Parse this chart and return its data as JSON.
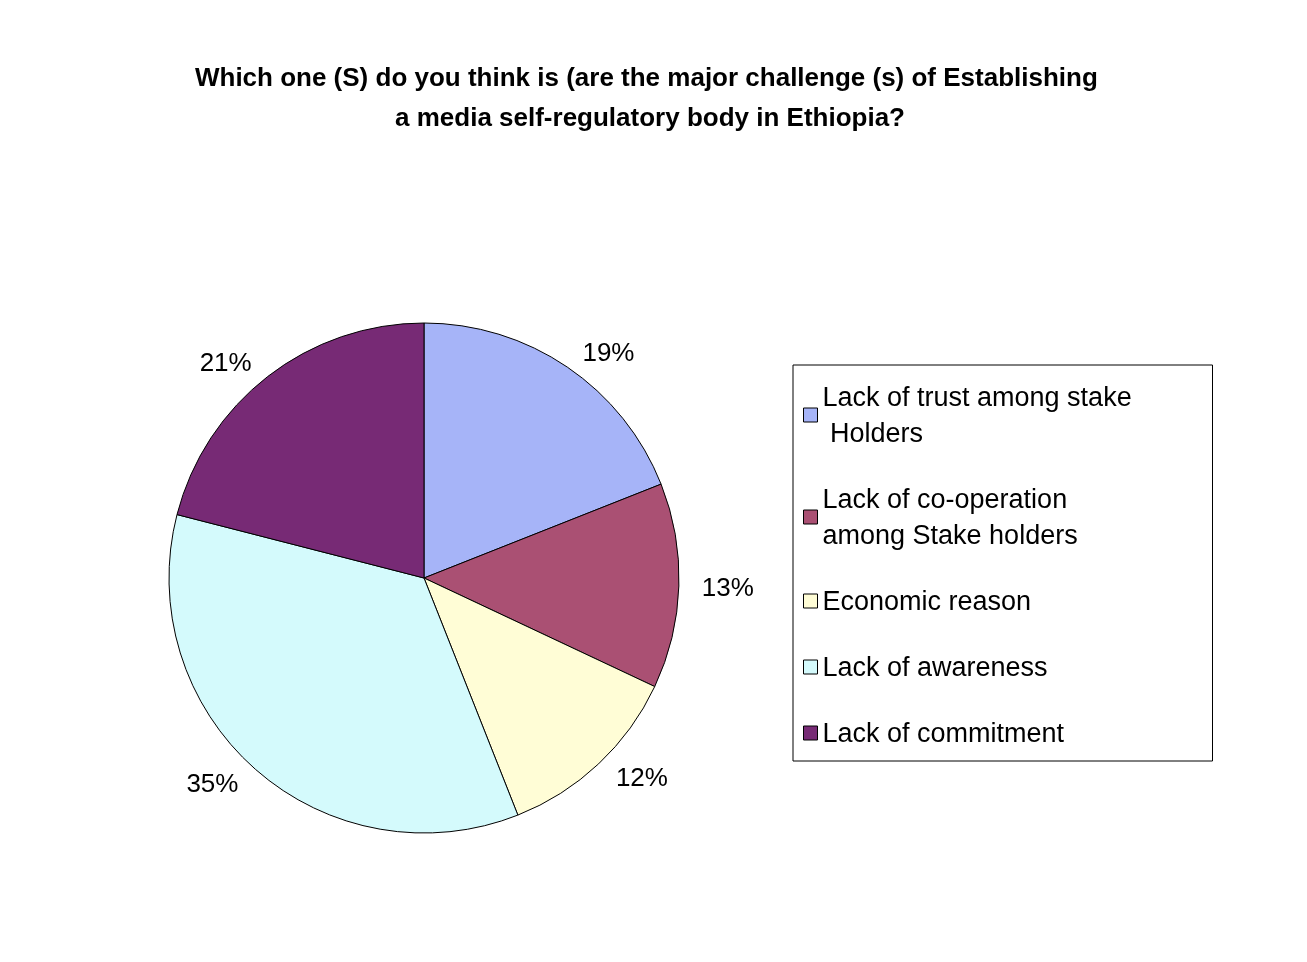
{
  "chart_data": {
    "type": "pie",
    "title": "Which one (S) do you think is (are the major challenge (s) of Establishing a media self-regulatory body in Ethiopia?",
    "categories": [
      "Lack of trust among stake Holders",
      "Lack of co-operation among Stake holders",
      "Economic reason",
      "Lack of awareness",
      "Lack of commitment"
    ],
    "values": [
      19,
      13,
      12,
      35,
      21
    ],
    "value_labels": [
      "19%",
      "13%",
      "12%",
      "35%",
      "21%"
    ],
    "colors": [
      "#a6b4f8",
      "#aa5073",
      "#fffdd6",
      "#d4fafc",
      "#772a75"
    ],
    "legend": "right"
  }
}
